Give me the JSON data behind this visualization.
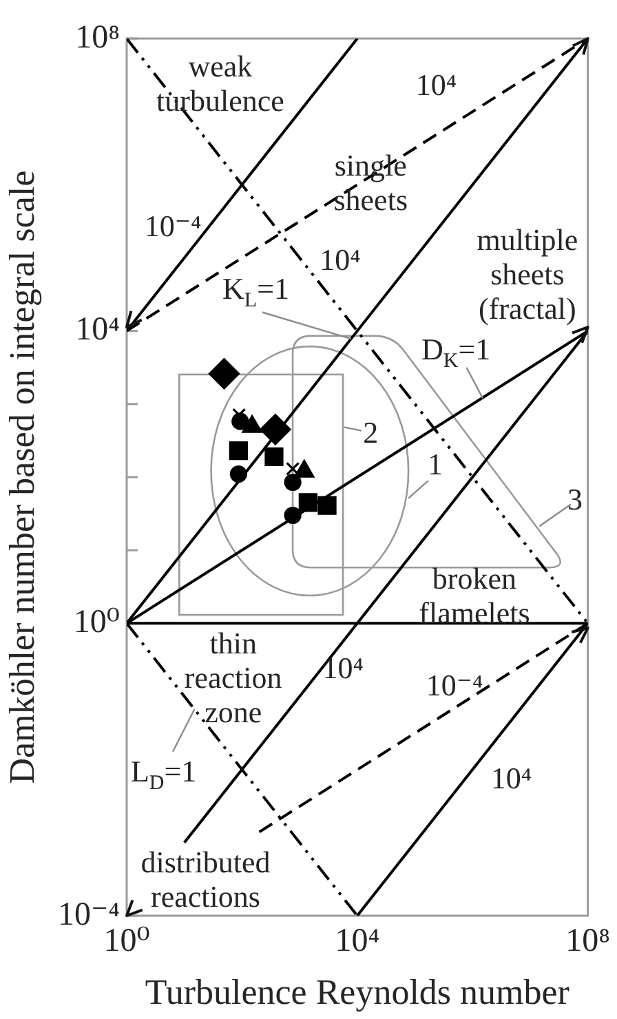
{
  "chart_data": {
    "type": "line",
    "xlabel": "Turbulence Reynolds number",
    "ylabel": "Damköhler number based on integral scale",
    "log": "xy",
    "xlim": [
      1,
      100000000
    ],
    "ylim": [
      0.0001,
      100000000
    ],
    "xticks": [
      {
        "value": 1,
        "label": "10⁰"
      },
      {
        "value": 10000,
        "label": "10⁴"
      },
      {
        "value": 100000000,
        "label": "10⁸"
      }
    ],
    "yticks": [
      {
        "value": 0.0001,
        "label": "10⁻⁴"
      },
      {
        "value": 1,
        "label": "10⁰"
      },
      {
        "value": 10,
        "label": null
      },
      {
        "value": 100,
        "label": null
      },
      {
        "value": 1000,
        "label": null
      },
      {
        "value": 10000,
        "label": "10⁴"
      },
      {
        "value": 100000000,
        "label": "10⁸"
      }
    ],
    "grid": false,
    "legend": false,
    "marker": "none",
    "series": [
      {
        "color": "#000000",
        "line_style": "solid",
        "x": [
          1,
          100000000
        ],
        "values": [
          1,
          1
        ]
      },
      {
        "color": "#000000",
        "line_style": "solid",
        "x": [
          1,
          100000000
        ],
        "values": [
          1,
          10000
        ]
      },
      {
        "color": "#000000",
        "line_style": "solid",
        "x": [
          1,
          10000
        ],
        "values": [
          10000,
          100000000
        ]
      },
      {
        "color": "#000000",
        "line_style": "dashed",
        "x": [
          1,
          100000000
        ],
        "values": [
          10000,
          100000000
        ]
      },
      {
        "color": "#000000",
        "line_style": "solid",
        "x": [
          1,
          100000000
        ],
        "values": [
          1,
          100000000
        ]
      },
      {
        "color": "#000000",
        "line_style": "solid",
        "x": [
          10,
          100000000
        ],
        "values": [
          0.001,
          10000
        ]
      },
      {
        "color": "#000000",
        "line_style": "solid",
        "x": [
          10000,
          100000000
        ],
        "values": [
          0.0001,
          1
        ]
      },
      {
        "color": "#000000",
        "line_style": "dashed",
        "x": [
          200,
          100000000
        ],
        "values": [
          0.0014,
          1
        ]
      },
      {
        "color": "#000000",
        "line_style": "dashdot",
        "x": [
          1,
          100000000
        ],
        "values": [
          100000000,
          1
        ]
      },
      {
        "color": "#000000",
        "line_style": "dashdot",
        "x": [
          1,
          10000
        ],
        "values": [
          1,
          0.0001
        ]
      },
      {
        "type": "scatter",
        "color": "#000000",
        "marker": "diamond",
        "x": [
          49,
          380
        ],
        "values": [
          2600,
          450
        ]
      },
      {
        "type": "scatter",
        "color": "#000000",
        "marker": "circle",
        "x": [
          93,
          760
        ],
        "values": [
          580,
          85
        ]
      },
      {
        "type": "scatter",
        "color": "#000000",
        "marker": "cross",
        "x": [
          89,
          760
        ],
        "values": [
          710,
          130
        ]
      },
      {
        "type": "scatter",
        "color": "#000000",
        "marker": "triangle",
        "x": [
          150,
          1200
        ],
        "values": [
          490,
          120
        ]
      },
      {
        "type": "scatter",
        "color": "#000000",
        "marker": "square",
        "x": [
          87,
          1400
        ],
        "values": [
          230,
          45
        ]
      },
      {
        "type": "scatter",
        "color": "#000000",
        "marker": "circle",
        "x": [
          87,
          760
        ],
        "values": [
          110,
          30
        ]
      },
      {
        "type": "scatter",
        "color": "#000000",
        "marker": "square",
        "x": [
          360,
          3000
        ],
        "values": [
          190,
          41
        ]
      }
    ],
    "annotations": [
      "weak\nturbulence",
      "10⁻⁴",
      {
        "text": "K$_{L}$=1",
        "x": 7800,
        "y": 7800
      },
      "single\nsheets",
      "10⁴",
      "10⁴",
      "multiple\nsheets\n(fractal)",
      {
        "text": "D$_{K}$=1",
        "x": 1500000,
        "y": 1200
      },
      "2",
      "1",
      "3",
      "broken\nflamelets",
      "thin\nreaction\nzone",
      {
        "text": "L$_{D}$=1",
        "x": 15,
        "y": 0.067
      },
      "10⁴",
      "10⁻⁴",
      "10⁴",
      "distributed\nreactions"
    ]
  }
}
